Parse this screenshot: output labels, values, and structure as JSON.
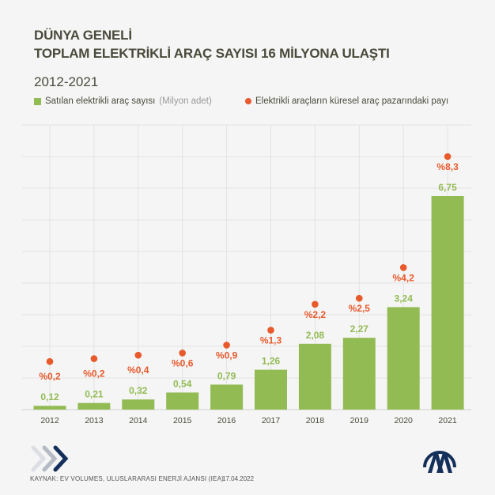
{
  "header": {
    "title_line1": "DÜNYA GENELİ",
    "title_line2": "TOPLAM ELEKTRİKLİ ARAÇ SAYISI 16 MİLYONA ULAŞTI",
    "subtitle": "2012-2021"
  },
  "legend": {
    "bars_label": "Satılan elektrikli araç sayısı",
    "bars_unit": "(Milyon adet)",
    "dots_label": "Elektrikli araçların küresel araç pazarındaki payı"
  },
  "colors": {
    "bar": "#92bb53",
    "dot": "#e8592b",
    "grid": "#e3e3e3"
  },
  "chart_data": {
    "type": "bar",
    "categories": [
      "2012",
      "2013",
      "2014",
      "2015",
      "2016",
      "2017",
      "2018",
      "2019",
      "2020",
      "2021"
    ],
    "series": [
      {
        "name": "Satılan elektrikli araç sayısı (Milyon adet)",
        "values": [
          0.12,
          0.21,
          0.32,
          0.54,
          0.79,
          1.26,
          2.08,
          2.27,
          3.24,
          6.75
        ],
        "labels": [
          "0,12",
          "0,21",
          "0,32",
          "0,54",
          "0,79",
          "1,26",
          "2,08",
          "2,27",
          "3,24",
          "6,75"
        ]
      },
      {
        "name": "Elektrikli araçların küresel araç pazarındaki payı",
        "type": "scatter",
        "values": [
          0.2,
          0.2,
          0.4,
          0.6,
          0.9,
          1.3,
          2.2,
          2.5,
          4.2,
          8.3
        ],
        "labels": [
          "%0,2",
          "%0,2",
          "%0,4",
          "%0,6",
          "%0,9",
          "%1,3",
          "%2,2",
          "%2,5",
          "%4,2",
          "%8,3"
        ]
      }
    ],
    "ylim": [
      0,
      9
    ],
    "grid": true,
    "legend": "top-left"
  },
  "footer": {
    "source": "KAYNAK: EV VOLUMES, ULUSLARARASI ENERJİ AJANSI (IEA)",
    "date": "17.04.2022",
    "logo_text": "AA"
  }
}
